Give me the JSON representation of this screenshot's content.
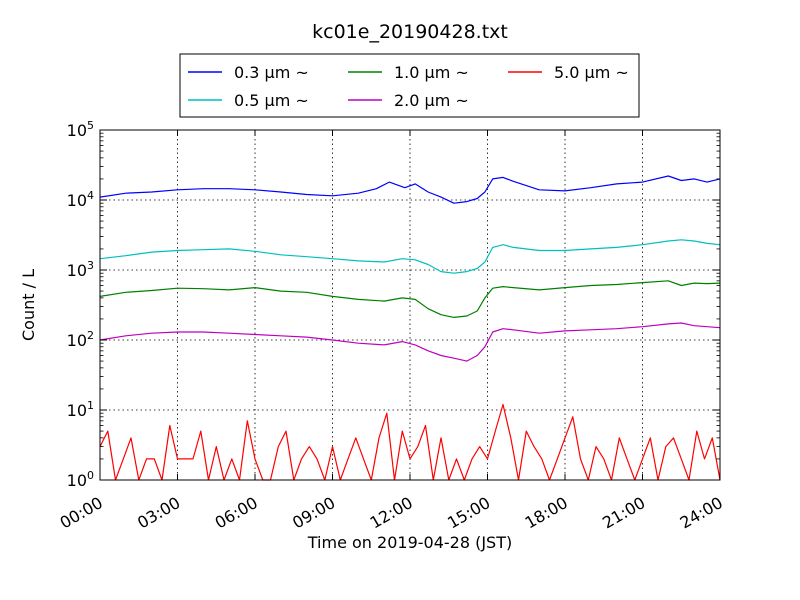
{
  "chart_data": {
    "type": "line",
    "title": "kc01e_20190428.txt",
    "xlabel": "Time on 2019-04-28 (JST)",
    "ylabel": "Count / L",
    "x_ticks": [
      "00:00",
      "03:00",
      "06:00",
      "09:00",
      "12:00",
      "15:00",
      "18:00",
      "21:00",
      "24:00"
    ],
    "xlim_hours": [
      0,
      24
    ],
    "y_scale": "log",
    "ylim": [
      1,
      100000
    ],
    "y_ticks": [
      {
        "base": "10",
        "exp": "0"
      },
      {
        "base": "10",
        "exp": "1"
      },
      {
        "base": "10",
        "exp": "2"
      },
      {
        "base": "10",
        "exp": "3"
      },
      {
        "base": "10",
        "exp": "4"
      },
      {
        "base": "10",
        "exp": "5"
      }
    ],
    "grid": true,
    "legend": {
      "placement": "top-center",
      "columns": 3
    },
    "series": [
      {
        "name": "0.3 μm ~",
        "size": "0.3",
        "color": "#0000ff",
        "x_hours": [
          0,
          1,
          2,
          3,
          4,
          5,
          6,
          7,
          8,
          9,
          10,
          10.7,
          11.2,
          11.8,
          12.2,
          12.7,
          13.2,
          13.7,
          14.2,
          14.6,
          14.9,
          15.2,
          15.6,
          16,
          17,
          18,
          19,
          20,
          21,
          22,
          22.5,
          23,
          23.5,
          24
        ],
        "values": [
          11000,
          12500,
          13000,
          14000,
          14500,
          14500,
          14000,
          13000,
          12000,
          11500,
          12500,
          14500,
          18000,
          15000,
          17000,
          13000,
          11000,
          9000,
          9500,
          10500,
          13000,
          20000,
          21000,
          18500,
          14000,
          13500,
          15000,
          17000,
          18000,
          22000,
          19000,
          20000,
          18000,
          20000
        ]
      },
      {
        "name": "0.5 μm ~",
        "size": "0.5",
        "color": "#00bfbf",
        "x_hours": [
          0,
          1,
          2,
          3,
          4,
          5,
          6,
          7,
          8,
          9,
          10,
          11,
          11.7,
          12.2,
          12.7,
          13.2,
          13.7,
          14.2,
          14.6,
          14.9,
          15.2,
          15.6,
          16,
          17,
          18,
          19,
          20,
          21,
          22,
          22.5,
          23,
          23.5,
          24
        ],
        "values": [
          1450,
          1600,
          1800,
          1900,
          1950,
          2000,
          1850,
          1650,
          1550,
          1450,
          1350,
          1300,
          1450,
          1400,
          1200,
          950,
          900,
          950,
          1050,
          1300,
          2100,
          2300,
          2100,
          1900,
          1900,
          2000,
          2100,
          2300,
          2600,
          2700,
          2600,
          2400,
          2300
        ]
      },
      {
        "name": "1.0 μm ~",
        "size": "1.0",
        "color": "#008000",
        "x_hours": [
          0,
          1,
          2,
          3,
          4,
          5,
          6,
          7,
          8,
          9,
          10,
          11,
          11.7,
          12.2,
          12.7,
          13.2,
          13.7,
          14.2,
          14.6,
          14.9,
          15.2,
          15.6,
          16,
          17,
          18,
          19,
          20,
          21,
          22,
          22.5,
          23,
          23.5,
          24
        ],
        "values": [
          420,
          480,
          510,
          550,
          540,
          520,
          560,
          500,
          480,
          420,
          380,
          360,
          400,
          380,
          280,
          230,
          210,
          220,
          260,
          400,
          550,
          580,
          560,
          520,
          560,
          600,
          620,
          660,
          700,
          600,
          650,
          640,
          650
        ]
      },
      {
        "name": "2.0 μm ~",
        "size": "2.0",
        "color": "#bf00bf",
        "x_hours": [
          0,
          1,
          2,
          3,
          4,
          5,
          6,
          7,
          8,
          9,
          10,
          11,
          11.7,
          12.2,
          12.7,
          13.2,
          13.7,
          14.2,
          14.6,
          14.9,
          15.2,
          15.6,
          16,
          17,
          18,
          19,
          20,
          21,
          22,
          22.5,
          23,
          23.5,
          24
        ],
        "values": [
          100,
          115,
          125,
          130,
          130,
          125,
          120,
          115,
          110,
          100,
          90,
          85,
          95,
          85,
          70,
          60,
          55,
          50,
          60,
          80,
          130,
          145,
          140,
          125,
          135,
          140,
          145,
          155,
          170,
          175,
          160,
          155,
          150
        ]
      },
      {
        "name": "5.0 μm ~",
        "size": "5.0",
        "color": "#ff0000",
        "x_hours": [
          0,
          0.3,
          0.6,
          0.9,
          1.2,
          1.5,
          1.8,
          2.1,
          2.4,
          2.7,
          3.0,
          3.3,
          3.6,
          3.9,
          4.2,
          4.5,
          4.8,
          5.1,
          5.4,
          5.7,
          6.0,
          6.3,
          6.6,
          6.9,
          7.2,
          7.5,
          7.8,
          8.1,
          8.4,
          8.7,
          9.0,
          9.3,
          9.6,
          9.9,
          10.2,
          10.5,
          10.8,
          11.1,
          11.4,
          11.7,
          12.0,
          12.3,
          12.6,
          12.9,
          13.2,
          13.5,
          13.8,
          14.1,
          14.4,
          14.7,
          15.0,
          15.3,
          15.6,
          15.9,
          16.2,
          16.5,
          16.8,
          17.1,
          17.4,
          17.7,
          18.0,
          18.3,
          18.6,
          18.9,
          19.2,
          19.5,
          19.8,
          20.1,
          20.4,
          20.7,
          21.0,
          21.3,
          21.6,
          21.9,
          22.2,
          22.5,
          22.8,
          23.1,
          23.4,
          23.7,
          24.0
        ],
        "values": [
          3,
          5,
          1,
          2,
          4,
          1,
          2,
          2,
          1,
          6,
          2,
          2,
          2,
          5,
          1,
          3,
          1,
          2,
          1,
          7,
          2,
          1,
          1,
          3,
          5,
          1,
          2,
          3,
          2,
          1,
          3,
          1,
          2,
          4,
          2,
          1,
          4,
          9,
          1,
          5,
          2,
          3,
          6,
          1,
          4,
          1,
          2,
          1,
          2,
          3,
          2,
          5,
          12,
          4,
          1,
          5,
          3,
          2,
          1,
          2,
          4,
          8,
          2,
          1,
          3,
          2,
          1,
          4,
          2,
          1,
          2,
          4,
          1,
          3,
          4,
          2,
          1,
          5,
          2,
          4,
          1
        ]
      }
    ]
  }
}
